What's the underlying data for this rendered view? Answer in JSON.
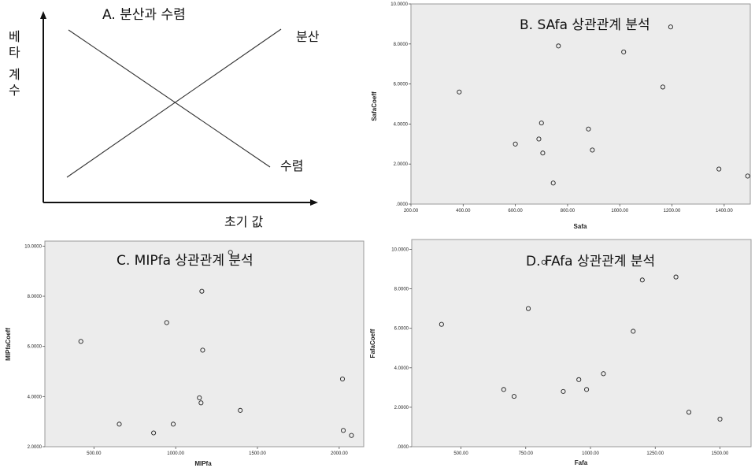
{
  "chart_data": [
    {
      "panel": "A",
      "type": "line",
      "title": "A. 분산과 수렴",
      "ylabel": "베타계수",
      "xlabel": "초기 값",
      "series": [
        {
          "name": "분산",
          "label": "분산",
          "trend": "increasing"
        },
        {
          "name": "수렴",
          "label": "수렴",
          "trend": "decreasing"
        }
      ]
    },
    {
      "panel": "B",
      "type": "scatter",
      "title": "B. SAfa 상관관계 분석",
      "xlabel": "Safa",
      "ylabel": "SafaCoeff",
      "xlim": [
        200,
        1500
      ],
      "ylim": [
        0,
        10
      ],
      "xticks": [
        "200.00",
        "400.00",
        "600.00",
        "800.00",
        "1000.00",
        "1200.00",
        "1400.00"
      ],
      "yticks": [
        ".0000",
        "2.0000",
        "4.0000",
        "6.0000",
        "8.0000",
        "10.0000"
      ],
      "points": [
        {
          "x": 385,
          "y": 5.6
        },
        {
          "x": 600,
          "y": 3.0
        },
        {
          "x": 690,
          "y": 3.25
        },
        {
          "x": 700,
          "y": 4.05
        },
        {
          "x": 705,
          "y": 2.55
        },
        {
          "x": 745,
          "y": 1.05
        },
        {
          "x": 765,
          "y": 7.9
        },
        {
          "x": 880,
          "y": 3.75
        },
        {
          "x": 895,
          "y": 2.7
        },
        {
          "x": 1015,
          "y": 7.6
        },
        {
          "x": 1165,
          "y": 5.85
        },
        {
          "x": 1195,
          "y": 8.85
        },
        {
          "x": 1380,
          "y": 1.75
        },
        {
          "x": 1490,
          "y": 1.4
        }
      ]
    },
    {
      "panel": "C",
      "type": "scatter",
      "title": "C. MIPfa 상관관계 분석",
      "xlabel": "MIPfa",
      "ylabel": "MIPfaCoeff",
      "xlim": [
        200,
        2150
      ],
      "ylim": [
        2,
        10.2
      ],
      "xticks": [
        "500.00",
        "1000.00",
        "1500.00",
        "2000.00"
      ],
      "yticks": [
        "2.0000",
        "4.0000",
        "6.0000",
        "8.0000",
        "10.0000"
      ],
      "points": [
        {
          "x": 420,
          "y": 6.2
        },
        {
          "x": 655,
          "y": 2.9
        },
        {
          "x": 865,
          "y": 2.55
        },
        {
          "x": 945,
          "y": 6.95
        },
        {
          "x": 985,
          "y": 2.9
        },
        {
          "x": 1145,
          "y": 3.95
        },
        {
          "x": 1155,
          "y": 3.75
        },
        {
          "x": 1160,
          "y": 8.2
        },
        {
          "x": 1165,
          "y": 5.85
        },
        {
          "x": 1335,
          "y": 9.75
        },
        {
          "x": 1395,
          "y": 3.45
        },
        {
          "x": 2020,
          "y": 4.7
        },
        {
          "x": 2025,
          "y": 2.65
        },
        {
          "x": 2075,
          "y": 2.45
        }
      ]
    },
    {
      "panel": "D",
      "type": "scatter",
      "title": "D. FAfa 상관관계 분석",
      "xlabel": "Fafa",
      "ylabel": "FafaCoeff",
      "xlim": [
        310,
        1620
      ],
      "ylim": [
        0,
        10.5
      ],
      "xticks": [
        "500.00",
        "750.00",
        "1000.00",
        "1250.00",
        "1500.00"
      ],
      "yticks": [
        ".0000",
        "2.0000",
        "4.0000",
        "6.0000",
        "8.0000",
        "10.0000"
      ],
      "points": [
        {
          "x": 425,
          "y": 6.2
        },
        {
          "x": 665,
          "y": 2.9
        },
        {
          "x": 705,
          "y": 2.55
        },
        {
          "x": 760,
          "y": 7.0
        },
        {
          "x": 820,
          "y": 9.35
        },
        {
          "x": 895,
          "y": 2.8
        },
        {
          "x": 955,
          "y": 3.4
        },
        {
          "x": 985,
          "y": 2.9
        },
        {
          "x": 1050,
          "y": 3.7
        },
        {
          "x": 1165,
          "y": 5.85
        },
        {
          "x": 1200,
          "y": 8.45
        },
        {
          "x": 1330,
          "y": 8.6
        },
        {
          "x": 1380,
          "y": 1.75
        },
        {
          "x": 1500,
          "y": 1.4
        }
      ]
    }
  ]
}
